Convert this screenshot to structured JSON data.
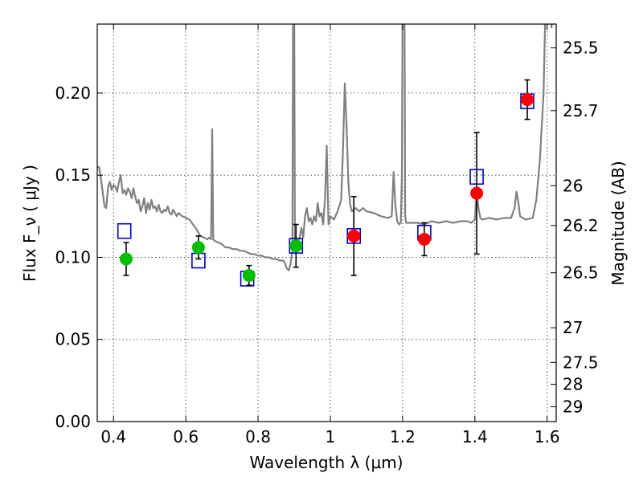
{
  "chart_data": {
    "type": "scatter",
    "xlabel": "Wavelength  λ (μm)",
    "ylabel": "Flux  F_ν  ( μJy )",
    "ylabel_right": "Magnitude (AB)",
    "xlim": [
      0.355,
      1.625
    ],
    "ylim": [
      0.0,
      0.242
    ],
    "grid": true,
    "x_ticks": [
      0.4,
      0.6,
      0.8,
      1.0,
      1.2,
      1.4,
      1.6
    ],
    "x_tick_labels": [
      "0.4",
      "0.6",
      "0.8",
      "1",
      "1.2",
      "1.4",
      "1.6"
    ],
    "y_ticks": [
      0.0,
      0.05,
      0.1,
      0.15,
      0.2
    ],
    "y_tick_labels": [
      "0.00",
      "0.05",
      "0.10",
      "0.15",
      "0.20"
    ],
    "right_ticks": [
      {
        "label": "25.5",
        "flux": 0.2275
      },
      {
        "label": "25.7",
        "flux": 0.1893
      },
      {
        "label": "26",
        "flux": 0.1436
      },
      {
        "label": "26.2",
        "flux": 0.1194
      },
      {
        "label": "26.5",
        "flux": 0.0906
      },
      {
        "label": "27",
        "flux": 0.0571
      },
      {
        "label": "27.5",
        "flux": 0.036
      },
      {
        "label": "28",
        "flux": 0.0227
      },
      {
        "label": "29",
        "flux": 0.009
      }
    ],
    "colors": {
      "model": "#808080",
      "green": "#00c000",
      "red": "#ff0000",
      "box": "#0000cc",
      "errorbar": "#000000",
      "grid": "#000000"
    },
    "series": [
      {
        "kind": "observed-green",
        "points": [
          {
            "x": 0.435,
            "y": 0.099,
            "err": 0.01
          },
          {
            "x": 0.635,
            "y": 0.106,
            "err": 0.007
          },
          {
            "x": 0.775,
            "y": 0.089,
            "err": 0.006
          },
          {
            "x": 0.905,
            "y": 0.107,
            "err": 0.013
          }
        ]
      },
      {
        "kind": "observed-red",
        "points": [
          {
            "x": 1.065,
            "y": 0.113,
            "err": 0.024
          },
          {
            "x": 1.26,
            "y": 0.111,
            "err": 0.01
          },
          {
            "x": 1.405,
            "y": 0.139,
            "err": 0.037
          },
          {
            "x": 1.545,
            "y": 0.196,
            "err": 0.012
          }
        ]
      },
      {
        "kind": "model-boxes",
        "points": [
          {
            "x": 0.43,
            "y": 0.116
          },
          {
            "x": 0.635,
            "y": 0.098
          },
          {
            "x": 0.77,
            "y": 0.087
          },
          {
            "x": 0.905,
            "y": 0.107
          },
          {
            "x": 1.065,
            "y": 0.113
          },
          {
            "x": 1.26,
            "y": 0.115
          },
          {
            "x": 1.405,
            "y": 0.149
          },
          {
            "x": 1.545,
            "y": 0.195
          }
        ]
      },
      {
        "kind": "model-spectrum",
        "points": [
          [
            0.355,
            0.155
          ],
          [
            0.36,
            0.155
          ],
          [
            0.365,
            0.148
          ],
          [
            0.37,
            0.14
          ],
          [
            0.375,
            0.131
          ],
          [
            0.38,
            0.13
          ],
          [
            0.385,
            0.143
          ],
          [
            0.39,
            0.146
          ],
          [
            0.395,
            0.141
          ],
          [
            0.4,
            0.144
          ],
          [
            0.405,
            0.143
          ],
          [
            0.41,
            0.14
          ],
          [
            0.415,
            0.146
          ],
          [
            0.42,
            0.15
          ],
          [
            0.425,
            0.139
          ],
          [
            0.43,
            0.141
          ],
          [
            0.435,
            0.138
          ],
          [
            0.44,
            0.142
          ],
          [
            0.445,
            0.14
          ],
          [
            0.45,
            0.136
          ],
          [
            0.455,
            0.142
          ],
          [
            0.46,
            0.137
          ],
          [
            0.465,
            0.133
          ],
          [
            0.47,
            0.135
          ],
          [
            0.475,
            0.128
          ],
          [
            0.48,
            0.131
          ],
          [
            0.485,
            0.136
          ],
          [
            0.49,
            0.127
          ],
          [
            0.495,
            0.133
          ],
          [
            0.5,
            0.129
          ],
          [
            0.505,
            0.135
          ],
          [
            0.51,
            0.13
          ],
          [
            0.515,
            0.131
          ],
          [
            0.52,
            0.128
          ],
          [
            0.525,
            0.132
          ],
          [
            0.53,
            0.128
          ],
          [
            0.535,
            0.127
          ],
          [
            0.54,
            0.129
          ],
          [
            0.545,
            0.128
          ],
          [
            0.55,
            0.131
          ],
          [
            0.555,
            0.127
          ],
          [
            0.56,
            0.126
          ],
          [
            0.565,
            0.129
          ],
          [
            0.57,
            0.127
          ],
          [
            0.575,
            0.125
          ],
          [
            0.58,
            0.127
          ],
          [
            0.59,
            0.125
          ],
          [
            0.6,
            0.124
          ],
          [
            0.61,
            0.123
          ],
          [
            0.62,
            0.12
          ],
          [
            0.63,
            0.117
          ],
          [
            0.64,
            0.113
          ],
          [
            0.65,
            0.112
          ],
          [
            0.66,
            0.111
          ],
          [
            0.665,
            0.112
          ],
          [
            0.67,
            0.111
          ],
          [
            0.673,
            0.178
          ],
          [
            0.676,
            0.111
          ],
          [
            0.68,
            0.11
          ],
          [
            0.69,
            0.109
          ],
          [
            0.7,
            0.108
          ],
          [
            0.71,
            0.106
          ],
          [
            0.72,
            0.106
          ],
          [
            0.73,
            0.105
          ],
          [
            0.74,
            0.105
          ],
          [
            0.75,
            0.104
          ],
          [
            0.76,
            0.104
          ],
          [
            0.77,
            0.103
          ],
          [
            0.78,
            0.102
          ],
          [
            0.79,
            0.102
          ],
          [
            0.8,
            0.101
          ],
          [
            0.81,
            0.101
          ],
          [
            0.82,
            0.1
          ],
          [
            0.83,
            0.1
          ],
          [
            0.84,
            0.099
          ],
          [
            0.85,
            0.099
          ],
          [
            0.86,
            0.098
          ],
          [
            0.87,
            0.098
          ],
          [
            0.875,
            0.096
          ],
          [
            0.88,
            0.093
          ],
          [
            0.885,
            0.092
          ],
          [
            0.89,
            0.096
          ],
          [
            0.895,
            0.104
          ],
          [
            0.897,
            0.26
          ],
          [
            0.9,
            0.26
          ],
          [
            0.902,
            0.11
          ],
          [
            0.905,
            0.108
          ],
          [
            0.91,
            0.11
          ],
          [
            0.915,
            0.112
          ],
          [
            0.92,
            0.118
          ],
          [
            0.925,
            0.112
          ],
          [
            0.93,
            0.125
          ],
          [
            0.935,
            0.13
          ],
          [
            0.94,
            0.122
          ],
          [
            0.945,
            0.124
          ],
          [
            0.95,
            0.12
          ],
          [
            0.955,
            0.125
          ],
          [
            0.96,
            0.122
          ],
          [
            0.965,
            0.133
          ],
          [
            0.97,
            0.125
          ],
          [
            0.975,
            0.127
          ],
          [
            0.98,
            0.12
          ],
          [
            0.985,
            0.135
          ],
          [
            0.99,
            0.168
          ],
          [
            0.995,
            0.12
          ],
          [
            1.0,
            0.125
          ],
          [
            1.01,
            0.123
          ],
          [
            1.02,
            0.128
          ],
          [
            1.03,
            0.135
          ],
          [
            1.035,
            0.165
          ],
          [
            1.04,
            0.206
          ],
          [
            1.045,
            0.18
          ],
          [
            1.05,
            0.145
          ],
          [
            1.055,
            0.132
          ],
          [
            1.06,
            0.128
          ],
          [
            1.07,
            0.13
          ],
          [
            1.08,
            0.128
          ],
          [
            1.09,
            0.13
          ],
          [
            1.1,
            0.128
          ],
          [
            1.12,
            0.127
          ],
          [
            1.14,
            0.125
          ],
          [
            1.16,
            0.124
          ],
          [
            1.17,
            0.125
          ],
          [
            1.175,
            0.152
          ],
          [
            1.18,
            0.132
          ],
          [
            1.185,
            0.122
          ],
          [
            1.19,
            0.12
          ],
          [
            1.195,
            0.121
          ],
          [
            1.198,
            0.15
          ],
          [
            1.2,
            0.26
          ],
          [
            1.205,
            0.26
          ],
          [
            1.207,
            0.125
          ],
          [
            1.21,
            0.121
          ],
          [
            1.22,
            0.121
          ],
          [
            1.24,
            0.121
          ],
          [
            1.26,
            0.12
          ],
          [
            1.28,
            0.122
          ],
          [
            1.3,
            0.121
          ],
          [
            1.32,
            0.122
          ],
          [
            1.34,
            0.121
          ],
          [
            1.36,
            0.122
          ],
          [
            1.38,
            0.122
          ],
          [
            1.39,
            0.121
          ],
          [
            1.4,
            0.123
          ],
          [
            1.405,
            0.14
          ],
          [
            1.41,
            0.13
          ],
          [
            1.415,
            0.124
          ],
          [
            1.42,
            0.123
          ],
          [
            1.44,
            0.124
          ],
          [
            1.46,
            0.123
          ],
          [
            1.48,
            0.124
          ],
          [
            1.5,
            0.124
          ],
          [
            1.51,
            0.13
          ],
          [
            1.515,
            0.14
          ],
          [
            1.52,
            0.134
          ],
          [
            1.525,
            0.125
          ],
          [
            1.54,
            0.123
          ],
          [
            1.56,
            0.124
          ],
          [
            1.57,
            0.135
          ],
          [
            1.58,
            0.16
          ],
          [
            1.59,
            0.2
          ],
          [
            1.595,
            0.25
          ],
          [
            1.6,
            0.26
          ],
          [
            1.605,
            0.26
          ],
          [
            1.612,
            0.24
          ],
          [
            1.62,
            0.26
          ],
          [
            1.625,
            0.26
          ]
        ]
      }
    ]
  }
}
